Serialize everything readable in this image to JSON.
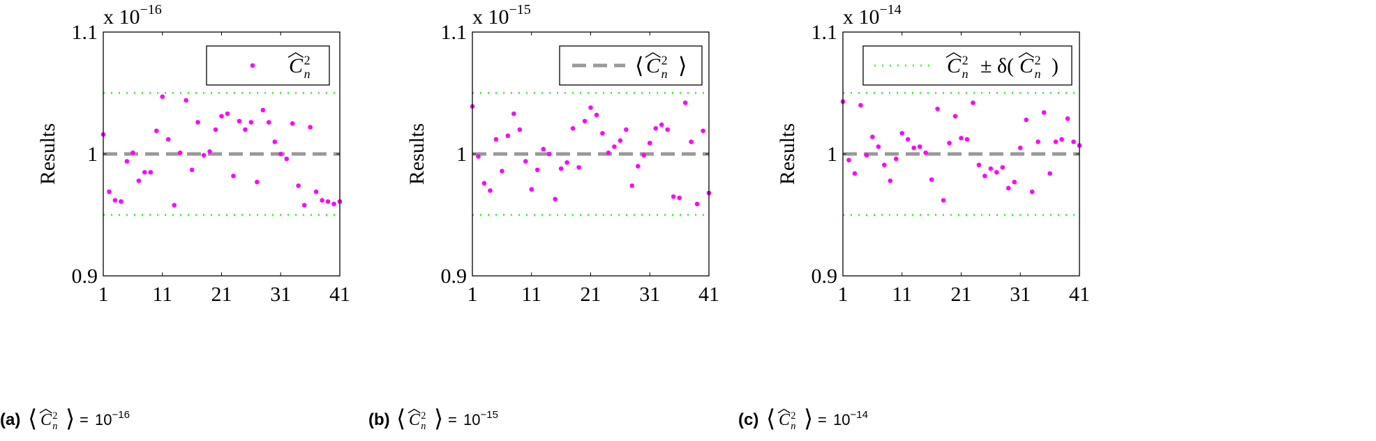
{
  "chart_data": [
    {
      "type": "scatter",
      "id": "a",
      "caption": {
        "letter": "(a)",
        "base": "10",
        "exponent": "−16"
      },
      "multiplier": {
        "prefix": "x 10",
        "exponent": "−16"
      },
      "ylabel": "Results",
      "xlabel": "",
      "xlim": [
        1,
        41
      ],
      "ylim": [
        0.9,
        1.1
      ],
      "xticks": [
        "1",
        "11",
        "21",
        "31",
        "41"
      ],
      "yticks": [
        "0.9",
        "1",
        "1.1"
      ],
      "grid": false,
      "legend": {
        "placement": "top-right",
        "entry": "scatter"
      },
      "x": [
        1,
        2,
        3,
        4,
        5,
        6,
        7,
        8,
        9,
        10,
        11,
        12,
        13,
        14,
        15,
        16,
        17,
        18,
        19,
        20,
        21,
        22,
        23,
        24,
        25,
        26,
        27,
        28,
        29,
        30,
        31,
        32,
        33,
        34,
        35,
        36,
        37,
        38,
        39,
        40,
        41
      ],
      "values": [
        1.016,
        0.969,
        0.962,
        0.961,
        0.994,
        1.001,
        0.978,
        0.985,
        0.985,
        1.019,
        1.047,
        1.012,
        0.958,
        1.001,
        1.044,
        0.987,
        1.026,
        0.999,
        1.002,
        1.02,
        1.031,
        1.033,
        0.982,
        1.027,
        1.02,
        1.026,
        0.977,
        1.036,
        1.026,
        1.01,
        1.0,
        0.996,
        1.025,
        0.974,
        0.958,
        1.022,
        0.969,
        0.962,
        0.961,
        0.959,
        0.961
      ],
      "mean": 1.0,
      "bounds": [
        0.95,
        1.05
      ]
    },
    {
      "type": "scatter",
      "id": "b",
      "caption": {
        "letter": "(b)",
        "base": "10",
        "exponent": "−15"
      },
      "multiplier": {
        "prefix": "x 10",
        "exponent": "−15"
      },
      "ylabel": "Results",
      "xlabel": "",
      "xlim": [
        1,
        41
      ],
      "ylim": [
        0.9,
        1.1
      ],
      "xticks": [
        "1",
        "11",
        "21",
        "31",
        "41"
      ],
      "yticks": [
        "0.9",
        "1",
        "1.1"
      ],
      "grid": false,
      "legend": {
        "placement": "top-right",
        "entry": "mean"
      },
      "x": [
        1,
        2,
        3,
        4,
        5,
        6,
        7,
        8,
        9,
        10,
        11,
        12,
        13,
        14,
        15,
        16,
        17,
        18,
        19,
        20,
        21,
        22,
        23,
        24,
        25,
        26,
        27,
        28,
        29,
        30,
        31,
        32,
        33,
        34,
        35,
        36,
        37,
        38,
        39,
        40,
        41
      ],
      "values": [
        1.039,
        0.998,
        0.976,
        0.97,
        1.012,
        0.986,
        1.015,
        1.033,
        1.02,
        0.994,
        0.971,
        0.987,
        1.004,
        1.0,
        0.963,
        0.988,
        0.993,
        1.021,
        0.989,
        1.027,
        1.038,
        1.032,
        1.017,
        1.001,
        1.006,
        1.011,
        1.02,
        0.974,
        0.99,
        0.999,
        1.009,
        1.021,
        1.024,
        1.02,
        0.965,
        0.964,
        1.042,
        1.01,
        0.959,
        1.019,
        0.968
      ],
      "mean": 1.0,
      "bounds": [
        0.95,
        1.05
      ]
    },
    {
      "type": "scatter",
      "id": "c",
      "caption": {
        "letter": "(c)",
        "base": "10",
        "exponent": "−14"
      },
      "multiplier": {
        "prefix": "x 10",
        "exponent": "−14"
      },
      "ylabel": "Results",
      "xlabel": "",
      "xlim": [
        1,
        41
      ],
      "ylim": [
        0.9,
        1.1
      ],
      "xticks": [
        "1",
        "11",
        "21",
        "31",
        "41"
      ],
      "yticks": [
        "0.9",
        "1",
        "1.1"
      ],
      "grid": false,
      "legend": {
        "placement": "top-right",
        "entry": "bounds"
      },
      "x": [
        1,
        2,
        3,
        4,
        5,
        6,
        7,
        8,
        9,
        10,
        11,
        12,
        13,
        14,
        15,
        16,
        17,
        18,
        19,
        20,
        21,
        22,
        23,
        24,
        25,
        26,
        27,
        28,
        29,
        30,
        31,
        32,
        33,
        34,
        35,
        36,
        37,
        38,
        39,
        40,
        41
      ],
      "values": [
        1.043,
        0.995,
        0.984,
        1.04,
        0.999,
        1.014,
        1.006,
        0.991,
        0.978,
        0.996,
        1.017,
        1.012,
        1.005,
        1.006,
        1.001,
        0.979,
        1.037,
        0.962,
        1.009,
        1.031,
        1.013,
        1.012,
        1.042,
        0.991,
        0.982,
        0.988,
        0.985,
        0.989,
        0.972,
        0.977,
        1.005,
        1.028,
        0.969,
        1.01,
        1.034,
        0.984,
        1.01,
        1.012,
        1.029,
        1.01,
        1.007
      ],
      "mean": 1.0,
      "bounds": [
        0.95,
        1.05
      ]
    }
  ],
  "style": {
    "point_color": "#ff00ff",
    "mean_color": "#999999",
    "bounds_color": "#33ff33",
    "axis_color": "#000000"
  }
}
